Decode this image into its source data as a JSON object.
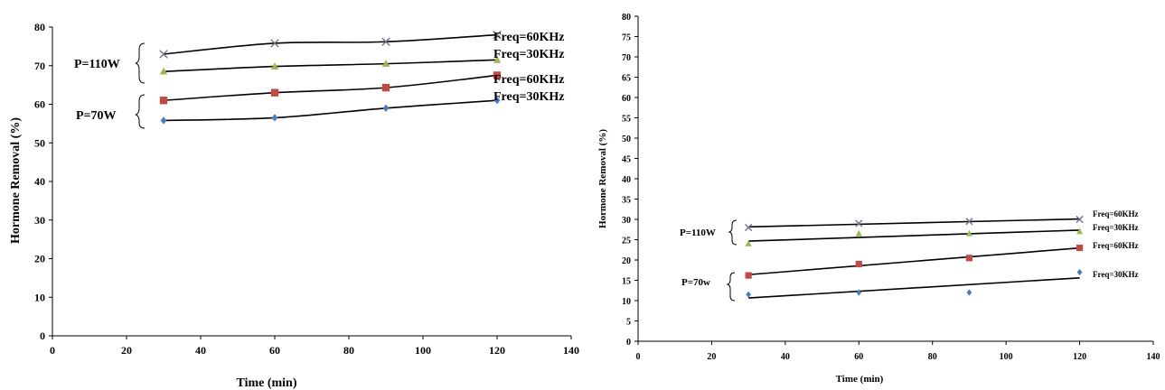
{
  "colors": {
    "series_30": "#4a7ebb",
    "series_60_70w": "#be4b48",
    "series_30_110w": "#98b954",
    "series_60_110w": "#7a6d8c",
    "axis": "#000000",
    "trend": "#000000"
  },
  "chart_data": [
    {
      "type": "scatter",
      "title": "",
      "xlabel": "Time (min)",
      "ylabel": "Hormone Removal (%)",
      "xlim": [
        0,
        140
      ],
      "ylim": [
        0,
        80
      ],
      "xticks": [
        0,
        20,
        40,
        60,
        80,
        100,
        120,
        140
      ],
      "yticks": [
        0,
        10,
        20,
        30,
        40,
        50,
        60,
        70,
        80
      ],
      "grid": false,
      "series": [
        {
          "name": "Freq=30KHz",
          "group": "P=70W",
          "marker": "diamond",
          "x": [
            30,
            60,
            90,
            120
          ],
          "y": [
            55.8,
            56.5,
            59,
            61
          ]
        },
        {
          "name": "Freq=60KHz",
          "group": "P=70W",
          "marker": "square",
          "x": [
            30,
            60,
            90,
            120
          ],
          "y": [
            61,
            63,
            64.3,
            67.5
          ]
        },
        {
          "name": "Freq=30KHz",
          "group": "P=110W",
          "marker": "triangle",
          "x": [
            30,
            60,
            90,
            120
          ],
          "y": [
            68.5,
            69.8,
            70.5,
            71.5
          ]
        },
        {
          "name": "Freq=60KHz",
          "group": "P=110W",
          "marker": "cross",
          "x": [
            30,
            60,
            90,
            120
          ],
          "y": [
            73,
            75.8,
            76.2,
            78
          ]
        }
      ],
      "annotations": {
        "group_110": "P=110W",
        "group_70": "P=70W",
        "labels": [
          "Freq=60KHz",
          "Freq=30KHz",
          "Freq=60KHz",
          "Freq=30KHz"
        ]
      }
    },
    {
      "type": "scatter",
      "title": "",
      "xlabel": "Time (min)",
      "ylabel": "Hormone Removal (%)",
      "xlim": [
        0,
        140
      ],
      "ylim": [
        0,
        80
      ],
      "xticks": [
        0,
        20,
        40,
        60,
        80,
        100,
        120,
        140
      ],
      "yticks": [
        0,
        5,
        10,
        15,
        20,
        25,
        30,
        35,
        40,
        45,
        50,
        55,
        60,
        65,
        70,
        75,
        80
      ],
      "grid": false,
      "series": [
        {
          "name": "Freq=30KHz",
          "group": "P=70w",
          "marker": "diamond",
          "x": [
            30,
            60,
            90,
            120
          ],
          "y": [
            11.5,
            12,
            12,
            17
          ]
        },
        {
          "name": "Freq=60KHz",
          "group": "P=70w",
          "marker": "square",
          "x": [
            30,
            60,
            90,
            120
          ],
          "y": [
            16.2,
            19,
            20.5,
            23
          ]
        },
        {
          "name": "Freq=30KHz",
          "group": "P=110W",
          "marker": "triangle",
          "x": [
            30,
            60,
            90,
            120
          ],
          "y": [
            24,
            26.5,
            26.5,
            27
          ]
        },
        {
          "name": "Freq=60KHz",
          "group": "P=110W",
          "marker": "cross",
          "x": [
            30,
            60,
            90,
            120
          ],
          "y": [
            28,
            29,
            29.5,
            30
          ]
        }
      ],
      "annotations": {
        "group_110": "P=110W",
        "group_70": "P=70w",
        "labels": [
          "Freq=60KHz",
          "Freq=30KHz",
          "Freq=60KHz",
          "Freq=30KHz"
        ]
      }
    }
  ]
}
